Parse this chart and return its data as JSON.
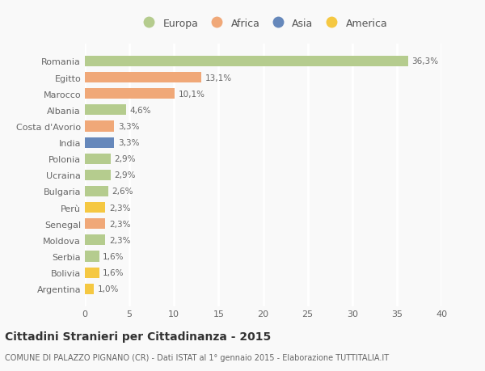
{
  "countries": [
    "Romania",
    "Egitto",
    "Marocco",
    "Albania",
    "Costa d'Avorio",
    "India",
    "Polonia",
    "Ucraina",
    "Bulgaria",
    "Perù",
    "Senegal",
    "Moldova",
    "Serbia",
    "Bolivia",
    "Argentina"
  ],
  "values": [
    36.3,
    13.1,
    10.1,
    4.6,
    3.3,
    3.3,
    2.9,
    2.9,
    2.6,
    2.3,
    2.3,
    2.3,
    1.6,
    1.6,
    1.0
  ],
  "labels": [
    "36,3%",
    "13,1%",
    "10,1%",
    "4,6%",
    "3,3%",
    "3,3%",
    "2,9%",
    "2,9%",
    "2,6%",
    "2,3%",
    "2,3%",
    "2,3%",
    "1,6%",
    "1,6%",
    "1,0%"
  ],
  "continents": [
    "Europa",
    "Africa",
    "Africa",
    "Europa",
    "Africa",
    "Asia",
    "Europa",
    "Europa",
    "Europa",
    "America",
    "Africa",
    "Europa",
    "Europa",
    "America",
    "America"
  ],
  "continent_colors": {
    "Europa": "#b5cc8e",
    "Africa": "#f0a878",
    "Asia": "#6688bb",
    "America": "#f5c842"
  },
  "legend_order": [
    "Europa",
    "Africa",
    "Asia",
    "America"
  ],
  "title": "Cittadini Stranieri per Cittadinanza - 2015",
  "subtitle": "COMUNE DI PALAZZO PIGNANO (CR) - Dati ISTAT al 1° gennaio 2015 - Elaborazione TUTTITALIA.IT",
  "xlim": [
    0,
    40
  ],
  "xticks": [
    0,
    5,
    10,
    15,
    20,
    25,
    30,
    35,
    40
  ],
  "background_color": "#f9f9f9",
  "grid_color": "#ffffff",
  "bar_height": 0.65
}
